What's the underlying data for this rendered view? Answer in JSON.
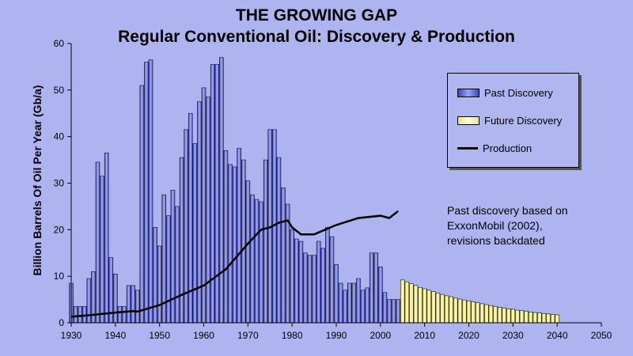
{
  "chart_data": {
    "type": "bar",
    "title": "THE GROWING GAP",
    "subtitle": "Regular Conventional Oil: Discovery & Production",
    "xlabel": "",
    "ylabel": "Billion Barrels Of Oil Per Year (Gb/a)",
    "xlim": [
      1930,
      2050
    ],
    "ylim": [
      0,
      60
    ],
    "x_ticks": [
      1930,
      1940,
      1950,
      1960,
      1970,
      1980,
      1990,
      2000,
      2010,
      2020,
      2030,
      2040,
      2050
    ],
    "y_ticks": [
      0,
      10,
      20,
      30,
      40,
      50,
      60
    ],
    "grid": false,
    "legend": [
      "Past Discovery",
      "Future Discovery",
      "Production"
    ],
    "legend_position": "top-right",
    "annotation": [
      "Past discovery based on",
      "ExxonMobil (2002),",
      "revisions backdated"
    ],
    "colors": {
      "past_discovery": "#4a52c8",
      "future_discovery": "#fffbb0",
      "production": "#000000"
    },
    "series": [
      {
        "name": "Past Discovery",
        "x": [
          1930,
          1931,
          1932,
          1933,
          1934,
          1935,
          1936,
          1937,
          1938,
          1939,
          1940,
          1941,
          1942,
          1943,
          1944,
          1945,
          1946,
          1947,
          1948,
          1949,
          1950,
          1951,
          1952,
          1953,
          1954,
          1955,
          1956,
          1957,
          1958,
          1959,
          1960,
          1961,
          1962,
          1963,
          1964,
          1965,
          1966,
          1967,
          1968,
          1969,
          1970,
          1971,
          1972,
          1973,
          1974,
          1975,
          1976,
          1977,
          1978,
          1979,
          1980,
          1981,
          1982,
          1983,
          1984,
          1985,
          1986,
          1987,
          1988,
          1989,
          1990,
          1991,
          1992,
          1993,
          1994,
          1995,
          1996,
          1997,
          1998,
          1999,
          2000,
          2001,
          2002,
          2003,
          2004
        ],
        "values": [
          8.5,
          3.5,
          3.5,
          3.5,
          9.5,
          11,
          34.5,
          31.5,
          36.5,
          14,
          10.5,
          3.5,
          3.5,
          8,
          8,
          7,
          51,
          56,
          56.5,
          20.5,
          16.5,
          27.5,
          23,
          28.5,
          25,
          35.5,
          41.5,
          45,
          38.5,
          47.5,
          50.5,
          48.5,
          55.5,
          55.5,
          57,
          37,
          34,
          33.5,
          37.5,
          35,
          30.5,
          27.5,
          26.5,
          26,
          35,
          41.5,
          41.5,
          35.5,
          29,
          25.5,
          20,
          18,
          17.5,
          15,
          14.5,
          14.5,
          17.5,
          16,
          20.5,
          18.5,
          12.5,
          8.5,
          7,
          8.5,
          8.5,
          9.5,
          7,
          7.5,
          15,
          15,
          12,
          6.5,
          5,
          5,
          5
        ]
      },
      {
        "name": "Future Discovery",
        "x": [
          2005,
          2006,
          2007,
          2008,
          2009,
          2010,
          2011,
          2012,
          2013,
          2014,
          2015,
          2016,
          2017,
          2018,
          2019,
          2020,
          2021,
          2022,
          2023,
          2024,
          2025,
          2026,
          2027,
          2028,
          2029,
          2030,
          2031,
          2032,
          2033,
          2034,
          2035,
          2036,
          2037,
          2038,
          2039,
          2040
        ],
        "values": [
          9.2,
          8.8,
          8.4,
          8,
          7.6,
          7.3,
          7,
          6.7,
          6.4,
          6.1,
          5.8,
          5.6,
          5.3,
          5.1,
          4.9,
          4.7,
          4.5,
          4.3,
          4.1,
          3.9,
          3.7,
          3.5,
          3.3,
          3.2,
          3,
          2.9,
          2.7,
          2.6,
          2.5,
          2.3,
          2.2,
          2.1,
          2,
          1.9,
          1.8,
          1.7
        ]
      },
      {
        "name": "Production",
        "type": "line",
        "x": [
          1930,
          1935,
          1940,
          1944,
          1945,
          1950,
          1955,
          1960,
          1965,
          1970,
          1973,
          1975,
          1977,
          1979,
          1980,
          1982,
          1985,
          1990,
          1995,
          2000,
          2002,
          2004
        ],
        "values": [
          1.3,
          1.7,
          2.2,
          2.5,
          2.4,
          3.8,
          6,
          8,
          11.5,
          17,
          20,
          20.5,
          21.5,
          22,
          20.5,
          19,
          19,
          21,
          22.5,
          23,
          22.5,
          24
        ]
      }
    ]
  }
}
